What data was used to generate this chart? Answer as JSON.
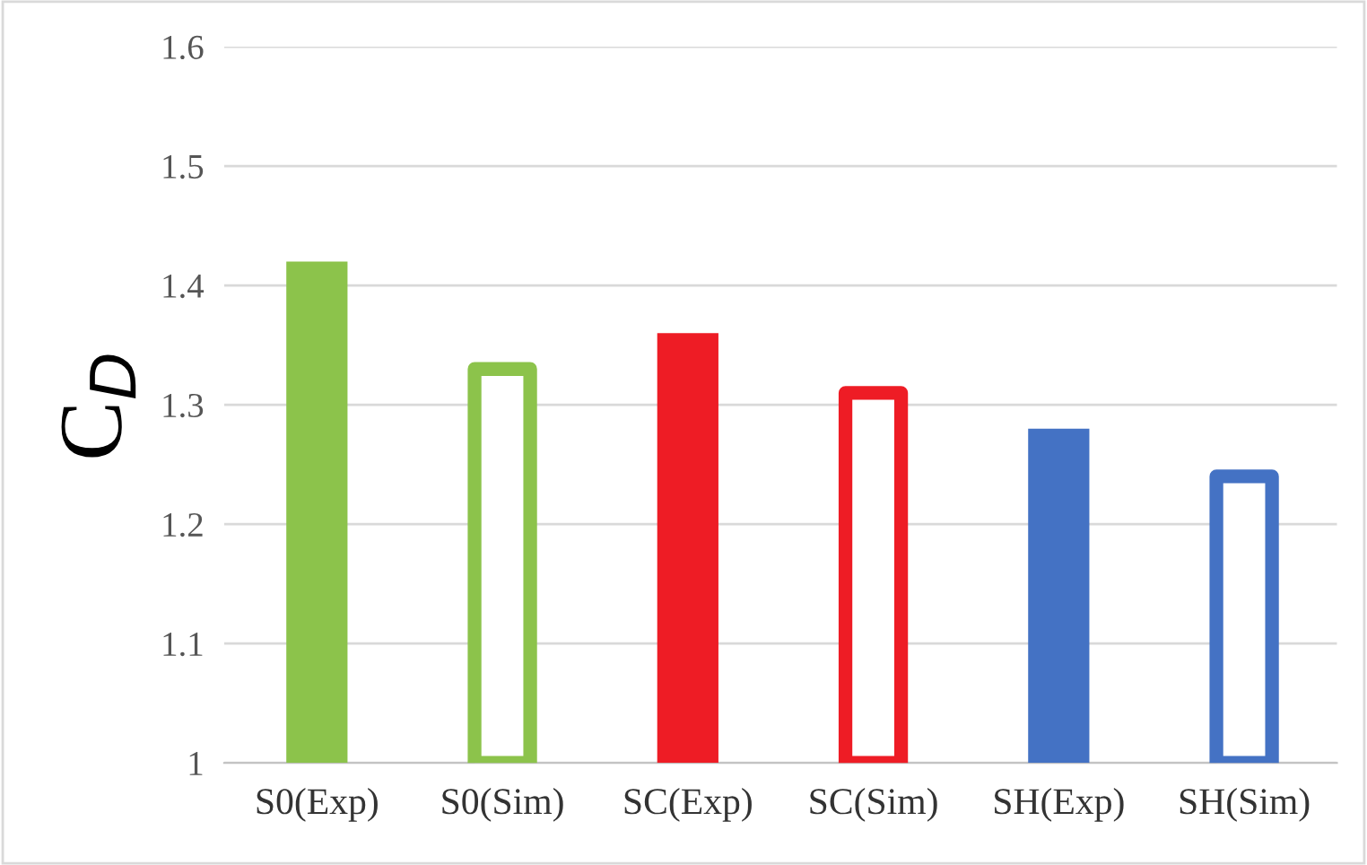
{
  "chart_data": {
    "type": "bar",
    "ylabel": "C$_{D}$",
    "categories": [
      "S0(Exp)",
      "S0(Sim)",
      "SC(Exp)",
      "SC(Sim)",
      "SH(Exp)",
      "SH(Sim)"
    ],
    "series": [
      {
        "colors": [
          "#8cc34b",
          null,
          "#ee1c25",
          null,
          "#4472c4",
          null
        ],
        "values": [
          1.42,
          null,
          1.36,
          null,
          1.28,
          null
        ]
      },
      {
        "colors": [
          null,
          "#8cc34b",
          null,
          "#ee1c25",
          null,
          "#4472c4"
        ],
        "values": [
          null,
          1.33,
          null,
          1.31,
          null,
          1.24
        ]
      }
    ],
    "ylim": [
      1,
      1.6
    ],
    "yticks": [
      1,
      1.1,
      1.2,
      1.3,
      1.4,
      1.5,
      1.6
    ],
    "grid": "y",
    "legend": false
  }
}
